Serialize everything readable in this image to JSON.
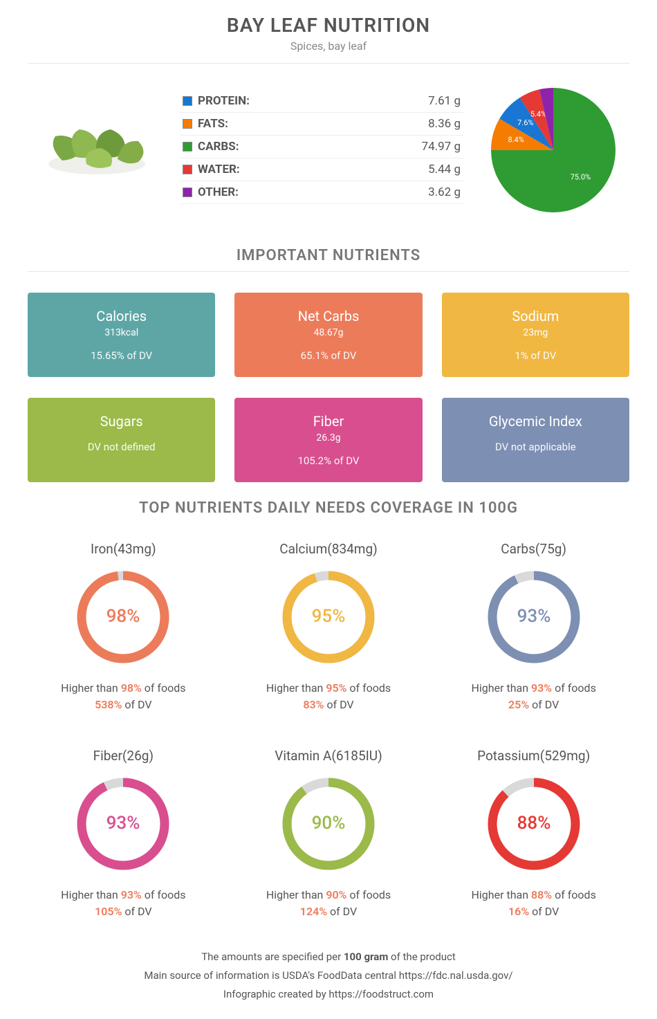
{
  "header": {
    "title": "BAY LEAF NUTRITION",
    "subtitle": "Spices, bay leaf"
  },
  "macros": [
    {
      "label": "PROTEIN:",
      "value": "7.61 g",
      "color": "#1976d2"
    },
    {
      "label": "FATS:",
      "value": "8.36 g",
      "color": "#f57c00"
    },
    {
      "label": "CARBS:",
      "value": "74.97 g",
      "color": "#2e9c33"
    },
    {
      "label": "WATER:",
      "value": "5.44 g",
      "color": "#e53935"
    },
    {
      "label": "OTHER:",
      "value": "3.62 g",
      "color": "#8e24aa"
    }
  ],
  "pie": {
    "type": "pie",
    "slices": [
      {
        "pct": 75.0,
        "label": "75.0%",
        "color": "#2e9c33"
      },
      {
        "pct": 8.4,
        "label": "8.4%",
        "color": "#f57c00"
      },
      {
        "pct": 7.6,
        "label": "7.6%",
        "color": "#1976d2"
      },
      {
        "pct": 5.4,
        "label": "5.4%",
        "color": "#e53935"
      },
      {
        "pct": 3.6,
        "label": "",
        "color": "#8e24aa"
      }
    ],
    "label_color": "#ffffff",
    "label_fontsize": 11
  },
  "section_titles": {
    "important": "IMPORTANT NUTRIENTS",
    "top": "TOP NUTRIENTS DAILY NEEDS COVERAGE IN 100G"
  },
  "cards": [
    {
      "title": "Calories",
      "value": "313kcal",
      "dv": "15.65% of DV",
      "bg": "#5ea6a6"
    },
    {
      "title": "Net Carbs",
      "value": "48.67g",
      "dv": "65.1% of DV",
      "bg": "#ec7b5a"
    },
    {
      "title": "Sodium",
      "value": "23mg",
      "dv": "1% of DV",
      "bg": "#f0b742"
    },
    {
      "title": "Sugars",
      "value": "",
      "dv": "DV not defined",
      "bg": "#9bba4a"
    },
    {
      "title": "Fiber",
      "value": "26.3g",
      "dv": "105.2% of DV",
      "bg": "#d94e8f"
    },
    {
      "title": "Glycemic Index",
      "value": "",
      "dv": "DV not applicable",
      "bg": "#7d8fb3"
    }
  ],
  "donuts": [
    {
      "title": "Iron(43mg)",
      "pct": 98,
      "color": "#ec7b5a",
      "foot_pre": "Higher than ",
      "foot_pct": "98%",
      "foot_post": " of foods",
      "dv": "538%",
      "dv_post": " of DV"
    },
    {
      "title": "Calcium(834mg)",
      "pct": 95,
      "color": "#f0b742",
      "foot_pre": "Higher than ",
      "foot_pct": "95%",
      "foot_post": " of foods",
      "dv": "83%",
      "dv_post": " of DV"
    },
    {
      "title": "Carbs(75g)",
      "pct": 93,
      "color": "#7d8fb3",
      "foot_pre": "Higher than ",
      "foot_pct": "93%",
      "foot_post": " of foods",
      "dv": "25%",
      "dv_post": " of DV"
    },
    {
      "title": "Fiber(26g)",
      "pct": 93,
      "color": "#d94e8f",
      "foot_pre": "Higher than ",
      "foot_pct": "93%",
      "foot_post": " of foods",
      "dv": "105%",
      "dv_post": " of DV"
    },
    {
      "title": "Vitamin A(6185IU)",
      "pct": 90,
      "color": "#9bba4a",
      "foot_pre": "Higher than ",
      "foot_pct": "90%",
      "foot_post": " of foods",
      "dv": "124%",
      "dv_post": " of DV"
    },
    {
      "title": "Potassium(529mg)",
      "pct": 88,
      "color": "#e53935",
      "foot_pre": "Higher than ",
      "foot_pct": "88%",
      "foot_post": " of foods",
      "dv": "16%",
      "dv_post": " of DV"
    }
  ],
  "donut_style": {
    "track_color": "#d9d9d9",
    "stroke_width": 13,
    "radius": 60
  },
  "footer": {
    "line1_pre": "The amounts are specified per ",
    "line1_bold": "100 gram",
    "line1_post": " of the product",
    "line2": "Main source of information is USDA's FoodData central https://fdc.nal.usda.gov/",
    "line3": "Infographic created by https://foodstruct.com",
    "highlight_color": "#ec7b5a"
  }
}
